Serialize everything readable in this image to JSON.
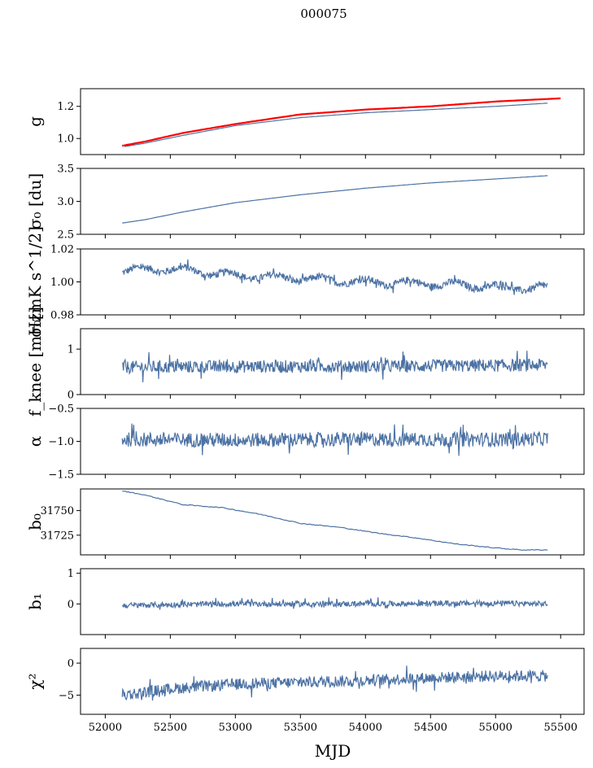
{
  "figure": {
    "title": "000075",
    "xlabel": "MJD"
  },
  "colors": {
    "series": "#4c72a4",
    "overlay": "#ff0000"
  },
  "chart_data": {
    "type": "line",
    "x_range": [
      52100,
      55400
    ],
    "xlim": [
      51810,
      55680
    ],
    "xticks": [
      52000,
      52500,
      53000,
      53500,
      54000,
      54500,
      55000,
      55500
    ],
    "panels": [
      {
        "key": "g",
        "ylabel": "g",
        "ylim": [
          0.9,
          1.31
        ],
        "yticks": [
          {
            "v": 1.0,
            "label": "1.0"
          },
          {
            "v": 1.2,
            "label": "1.2"
          }
        ],
        "series": [
          {
            "style": "blue",
            "mode": "smooth",
            "x": [
              52150,
              52300,
              52600,
              53000,
              53500,
              54000,
              54500,
              55000,
              55400
            ],
            "y": [
              0.95,
              0.97,
              1.02,
              1.08,
              1.13,
              1.16,
              1.18,
              1.2,
              1.22
            ]
          },
          {
            "style": "red",
            "mode": "smooth",
            "x": [
              52130,
              52300,
              52600,
              53000,
              53500,
              54000,
              54500,
              55000,
              55500
            ],
            "y": [
              0.955,
              0.98,
              1.035,
              1.09,
              1.15,
              1.18,
              1.2,
              1.23,
              1.25
            ]
          }
        ]
      },
      {
        "key": "sigma0_du",
        "ylabel": "σ₀ [du]",
        "ylim": [
          2.5,
          3.5
        ],
        "yticks": [
          {
            "v": 2.5,
            "label": "2.5"
          },
          {
            "v": 3.0,
            "label": "3.0"
          },
          {
            "v": 3.5,
            "label": "3.5"
          }
        ],
        "series": [
          {
            "style": "blue",
            "mode": "smooth",
            "x": [
              52130,
              52300,
              52600,
              53000,
              53500,
              54000,
              54500,
              55000,
              55400
            ],
            "y": [
              2.67,
              2.72,
              2.84,
              2.98,
              3.1,
              3.2,
              3.28,
              3.34,
              3.39
            ]
          }
        ]
      },
      {
        "key": "sigma0_mK",
        "ylabel": "σ₀[mK s^1/2]",
        "ylim": [
          0.98,
          1.02
        ],
        "yticks": [
          {
            "v": 0.98,
            "label": "0.98"
          },
          {
            "v": 1.0,
            "label": "1.00"
          },
          {
            "v": 1.02,
            "label": "1.02"
          }
        ],
        "series": [
          {
            "style": "blue",
            "mode": "noisy",
            "x": [
              52130,
              52500,
              53000,
              53500,
              54000,
              54500,
              55000,
              55400
            ],
            "y": [
              1.007,
              1.008,
              1.004,
              1.002,
              1.0,
              0.999,
              0.997,
              0.996
            ]
          }
        ]
      },
      {
        "key": "fknee",
        "ylabel": "f_knee [mHz]",
        "ylim": [
          0,
          1.45
        ],
        "yticks": [
          {
            "v": 0,
            "label": "0"
          },
          {
            "v": 1,
            "label": "1"
          }
        ],
        "series": [
          {
            "style": "blue",
            "mode": "noisy",
            "x": [
              52130,
              53000,
              54000,
              55000,
              55400
            ],
            "y": [
              0.6,
              0.62,
              0.62,
              0.64,
              0.65
            ]
          }
        ]
      },
      {
        "key": "alpha",
        "ylabel": "α",
        "ylim": [
          -1.5,
          -0.5
        ],
        "yticks": [
          {
            "v": -1.5,
            "label": "−1.5"
          },
          {
            "v": -1.0,
            "label": "−1.0"
          },
          {
            "v": -0.5,
            "label": "−0.5"
          }
        ],
        "series": [
          {
            "style": "blue",
            "mode": "noisy",
            "x": [
              52130,
              53000,
              54000,
              55000,
              55400
            ],
            "y": [
              -0.97,
              -0.98,
              -0.97,
              -0.97,
              -0.96
            ]
          }
        ]
      },
      {
        "key": "b0",
        "ylabel": "b₀",
        "ylim": [
          31705,
          31772
        ],
        "yticks": [
          {
            "v": 31725,
            "label": "31725"
          },
          {
            "v": 31750,
            "label": "31750"
          }
        ],
        "series": [
          {
            "style": "blue",
            "mode": "smooth",
            "x": [
              52130,
              52300,
              52600,
              52900,
              53200,
              53500,
              53800,
              54100,
              54400,
              54700,
              55000,
              55200,
              55400
            ],
            "y": [
              31770,
              31766,
              31756,
              31753,
              31746,
              31737,
              31733,
              31727,
              31722,
              31716,
              31712,
              31710,
              31710
            ]
          }
        ]
      },
      {
        "key": "b1",
        "ylabel": "b₁",
        "ylim": [
          -1.0,
          1.15
        ],
        "yticks": [
          {
            "v": 0,
            "label": "0"
          },
          {
            "v": 1,
            "label": "1"
          }
        ],
        "series": [
          {
            "style": "blue",
            "mode": "noisy",
            "x": [
              52130,
              53000,
              54000,
              55000,
              55400
            ],
            "y": [
              -0.05,
              0.0,
              0.0,
              0.02,
              0.0
            ]
          }
        ]
      },
      {
        "key": "chi2",
        "ylabel": "χ²",
        "ylim": [
          -8,
          2.3
        ],
        "yticks": [
          {
            "v": -5,
            "label": "−5"
          },
          {
            "v": 0,
            "label": "0"
          }
        ],
        "series": [
          {
            "style": "blue",
            "mode": "noisy",
            "x": [
              52130,
              52500,
              53000,
              53500,
              54000,
              54500,
              55000,
              55400
            ],
            "y": [
              -5.0,
              -4.0,
              -3.3,
              -3.0,
              -2.7,
              -2.3,
              -2.0,
              -2.0
            ]
          }
        ]
      }
    ]
  }
}
